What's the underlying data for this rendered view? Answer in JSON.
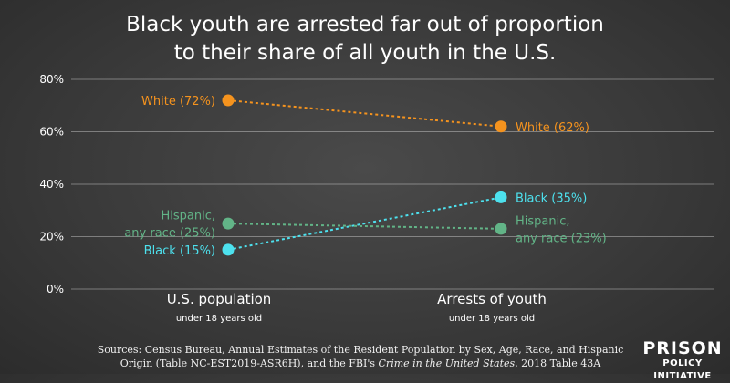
{
  "title_line1": "Black youth are arrested far out of proportion",
  "title_line2": "to their share of all youth in the U.S.",
  "sources": {
    "line1": "Sources: Census Bureau, Annual Estimates of the Resident Population by Sex, Age, Race, and Hispanic",
    "line2_a": "Origin (Table NC-EST2019-ASR6H), and the FBI's ",
    "line2_b": "Crime in the United States",
    "line2_c": ", 2018 Table 43A"
  },
  "logo": {
    "line1": "PRISON",
    "line2": "POLICY INITIATIVE"
  },
  "chart_data": {
    "type": "line",
    "categories": [
      "U.S. population",
      "Arrests of youth"
    ],
    "category_sublabels": [
      "under 18 years old",
      "under 18 years old"
    ],
    "y_ticks": [
      "0%",
      "20%",
      "40%",
      "60%",
      "80%"
    ],
    "ylim": [
      0,
      80
    ],
    "grid": true,
    "series": [
      {
        "name": "White",
        "values": [
          72,
          62
        ],
        "color": "#f5931e",
        "labels": [
          [
            "White (72%)"
          ],
          [
            "White (62%)"
          ]
        ]
      },
      {
        "name": "Black",
        "values": [
          15,
          35
        ],
        "color": "#4de1ee",
        "labels": [
          [
            "Black (15%)"
          ],
          [
            "Black (35%)"
          ]
        ]
      },
      {
        "name": "Hispanic, any race",
        "values": [
          25,
          23
        ],
        "color": "#62b487",
        "labels": [
          [
            "Hispanic,",
            "any race (25%)"
          ],
          [
            "Hispanic,",
            "any race (23%)"
          ]
        ]
      }
    ]
  }
}
